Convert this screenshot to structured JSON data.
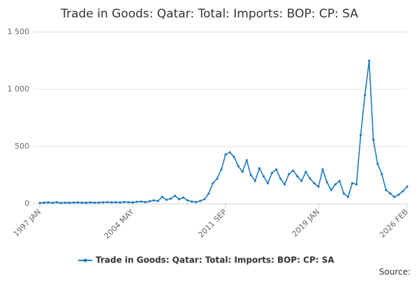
{
  "chart_data": {
    "type": "line",
    "title": "Trade in Goods: Qatar: Total: Imports: BOP: CP: SA",
    "categories": [
      "1997 JAN",
      null,
      null,
      null,
      null,
      null,
      null,
      null,
      null,
      null,
      null,
      null,
      null,
      null,
      null,
      null,
      null,
      null,
      null,
      null,
      null,
      null,
      "2004 MAY",
      null,
      null,
      null,
      null,
      null,
      null,
      null,
      null,
      null,
      null,
      null,
      null,
      null,
      null,
      null,
      null,
      null,
      null,
      null,
      null,
      null,
      "2011 SEP",
      null,
      null,
      null,
      null,
      null,
      null,
      null,
      null,
      null,
      null,
      null,
      null,
      null,
      null,
      null,
      null,
      null,
      null,
      null,
      null,
      null,
      "2019 JAN",
      null,
      null,
      null,
      null,
      null,
      null,
      null,
      null,
      null,
      null,
      null,
      null,
      null,
      null,
      null,
      null,
      null,
      null,
      null,
      null,
      "2026 FEB"
    ],
    "series": [
      {
        "name": "Trade in Goods: Qatar: Total: Imports: BOP: CP: SA",
        "color": "#1f7bbf",
        "values": [
          8,
          10,
          12,
          9,
          14,
          8,
          10,
          9,
          11,
          12,
          10,
          9,
          12,
          10,
          11,
          13,
          15,
          12,
          14,
          12,
          16,
          14,
          12,
          18,
          20,
          15,
          22,
          30,
          25,
          60,
          35,
          45,
          70,
          40,
          55,
          30,
          20,
          15,
          25,
          40,
          90,
          180,
          220,
          300,
          430,
          450,
          410,
          330,
          280,
          380,
          250,
          200,
          310,
          240,
          180,
          270,
          300,
          220,
          170,
          260,
          290,
          240,
          200,
          280,
          220,
          180,
          150,
          300,
          190,
          120,
          170,
          200,
          90,
          60,
          180,
          170,
          600,
          950,
          1250,
          560,
          350,
          260,
          120,
          90,
          60,
          80,
          110,
          150
        ]
      }
    ],
    "ylim": [
      0,
      1500
    ],
    "yticks": [
      0,
      500,
      {
        "value": 1000,
        "label": "1 000"
      },
      {
        "value": 1500,
        "label": "1 500"
      }
    ],
    "grid": true,
    "source": "Source:"
  }
}
